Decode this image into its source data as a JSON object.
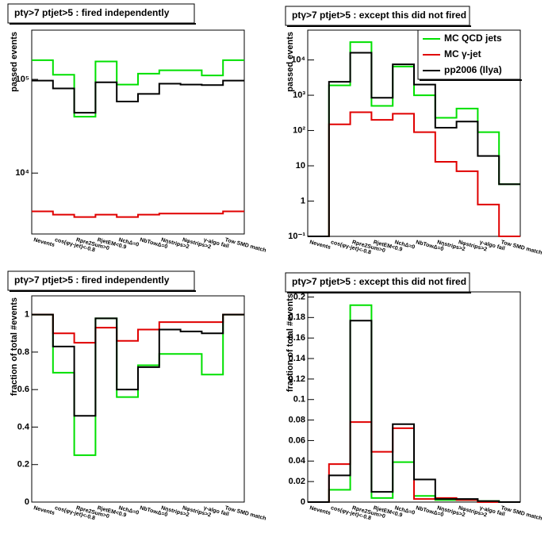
{
  "chart_data": [
    {
      "type": "step",
      "title": "ptγ>7 ptjet>5 : fired independently",
      "y_label": "passed events",
      "log_y": true,
      "categories": [
        "Nevents",
        "cos(φγ-jet)<-0.8",
        "Rpre2Sum>0",
        "RjetEM<0.9",
        "NchΔ=0",
        "NbTowΔ=0",
        "Nηstrips>2",
        "Nφstrips>2",
        "γ-algo fail",
        "Tow SMD match"
      ],
      "ylim": [
        2240,
        335000
      ],
      "yticks": [
        {
          "value": 10000,
          "label": "10⁴"
        },
        {
          "value": 100000,
          "label": "10⁵"
        }
      ],
      "series": [
        {
          "color": "#00e000",
          "values": [
            160000,
            112000,
            40000,
            155000,
            88000,
            115000,
            125000,
            125000,
            110000,
            160000
          ]
        },
        {
          "color": "#e00000",
          "values": [
            3900,
            3600,
            3400,
            3600,
            3400,
            3600,
            3700,
            3700,
            3700,
            3900
          ]
        },
        {
          "color": "#000000",
          "values": [
            97000,
            80000,
            44000,
            93000,
            58000,
            70000,
            90000,
            88000,
            87000,
            97000
          ]
        }
      ]
    },
    {
      "type": "step",
      "title": "ptγ>7 ptjet>5 : except this did not fired",
      "y_label": "passed events",
      "log_y": true,
      "categories": [
        "Nevents",
        "cos(φγ-jet)<-0.8",
        "Rpre2Sum>0",
        "RjetEM<0.9",
        "NchΔ=0",
        "NbTowΔ=0",
        "Nηstrips>2",
        "Nφstrips>2",
        "γ-algo fail",
        "Tow SMD match"
      ],
      "ylim": [
        0.1,
        70000
      ],
      "yticks": [
        {
          "value": 0.1,
          "label": "10⁻¹"
        },
        1,
        10,
        {
          "value": 100,
          "label": "10²"
        },
        {
          "value": 1000,
          "label": "10³"
        },
        {
          "value": 10000,
          "label": "10⁴"
        }
      ],
      "legend": "top-right",
      "series": [
        {
          "name": "MC QCD jets",
          "color": "#00e000",
          "values": [
            0,
            1900,
            32000,
            500,
            6500,
            1000,
            230,
            420,
            90,
            3
          ]
        },
        {
          "name": "MC γ-jet",
          "color": "#e00000",
          "values": [
            0,
            150,
            330,
            200,
            300,
            90,
            13,
            7,
            0.8,
            0
          ]
        },
        {
          "name": "pp2006 (Ilya)",
          "color": "#000000",
          "values": [
            0,
            2400,
            16000,
            850,
            7500,
            2000,
            120,
            180,
            19,
            3
          ]
        }
      ]
    },
    {
      "type": "step",
      "title": "ptγ>7 ptjet>5 : fired independently",
      "y_label": "fraction of total #events",
      "log_y": false,
      "categories": [
        "Nevents",
        "cos(φγ-jet)<-0.8",
        "Rpre2Sum>0",
        "RjetEM<0.9",
        "NchΔ=0",
        "NbTowΔ=0",
        "Nηstrips>2",
        "Nφstrips>2",
        "γ-algo fail",
        "Tow SMD match"
      ],
      "ylim": [
        0,
        1.1
      ],
      "yticks": [
        0,
        0.2,
        0.4,
        0.6,
        0.8,
        1
      ],
      "series": [
        {
          "color": "#00e000",
          "values": [
            1,
            0.69,
            0.25,
            0.98,
            0.56,
            0.73,
            0.79,
            0.79,
            0.68,
            1
          ]
        },
        {
          "color": "#e00000",
          "values": [
            1,
            0.9,
            0.85,
            0.93,
            0.86,
            0.92,
            0.96,
            0.96,
            0.96,
            1
          ]
        },
        {
          "color": "#000000",
          "values": [
            1,
            0.83,
            0.46,
            0.98,
            0.6,
            0.72,
            0.92,
            0.91,
            0.9,
            1
          ]
        }
      ]
    },
    {
      "type": "step",
      "title": "ptγ>7 ptjet>5 : except this did not fired",
      "y_label": "fraction of total #events",
      "log_y": false,
      "categories": [
        "Nevents",
        "cos(φγ-jet)<-0.8",
        "Rpre2Sum>0",
        "RjetEM<0.9",
        "NchΔ=0",
        "NbTowΔ=0",
        "Nηstrips>2",
        "Nφstrips>2",
        "γ-algo fail",
        "Tow SMD match"
      ],
      "ylim": [
        0,
        0.205
      ],
      "yticks": [
        0,
        0.02,
        0.04,
        0.06,
        0.08,
        0.1,
        0.12,
        0.14,
        0.16,
        0.18,
        0.2
      ],
      "series": [
        {
          "color": "#00e000",
          "values": [
            0,
            0.012,
            0.192,
            0.004,
            0.039,
            0.006,
            0.002,
            0.002,
            0.001,
            0
          ]
        },
        {
          "color": "#e00000",
          "values": [
            0,
            0.037,
            0.078,
            0.049,
            0.072,
            0.003,
            0.004,
            0.002,
            0,
            0
          ]
        },
        {
          "color": "#000000",
          "values": [
            0,
            0.026,
            0.177,
            0.01,
            0.076,
            0.022,
            0.003,
            0.003,
            0.001,
            0
          ]
        }
      ]
    }
  ]
}
